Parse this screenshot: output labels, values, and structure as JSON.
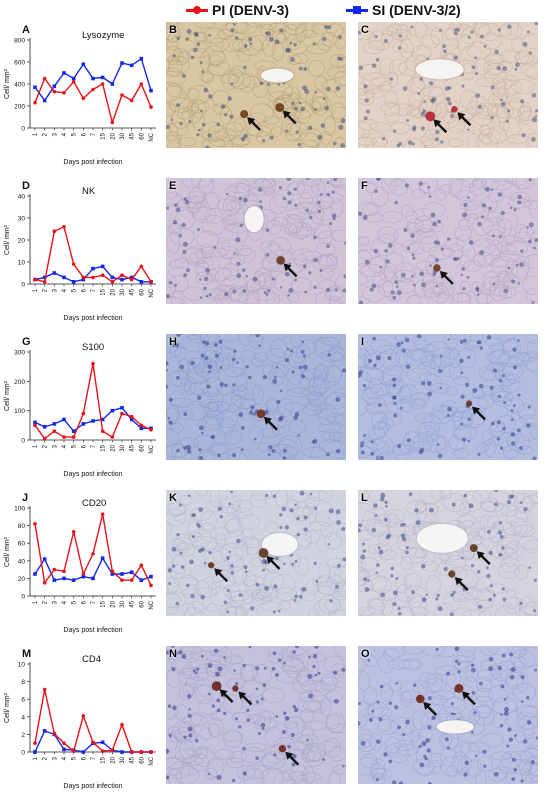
{
  "legend": [
    {
      "label": "PI (DENV-3)",
      "color": "#e8121b",
      "marker": "circle"
    },
    {
      "label": "SI (DENV-3/2)",
      "color": "#1428e6",
      "marker": "square"
    }
  ],
  "x_categories": [
    "1",
    "2",
    "3",
    "4",
    "5",
    "6",
    "7",
    "15",
    "20",
    "30",
    "45",
    "60",
    "NC"
  ],
  "xlabel": "Days post infection",
  "chart_data": [
    {
      "panel": "A",
      "title": "Lysozyme",
      "type": "line",
      "ylabel": "Cell/ mm²",
      "ylim": [
        0,
        800
      ],
      "yticks": [
        0,
        200,
        400,
        600,
        800
      ],
      "categories": [
        "1",
        "2",
        "3",
        "4",
        "5",
        "6",
        "7",
        "15",
        "20",
        "30",
        "45",
        "60",
        "NC"
      ],
      "series": [
        {
          "name": "PI (DENV-3)",
          "values": [
            230,
            450,
            330,
            320,
            420,
            270,
            350,
            400,
            50,
            300,
            250,
            400,
            190
          ]
        },
        {
          "name": "SI (DENV-3/2)",
          "values": [
            370,
            250,
            380,
            500,
            450,
            580,
            450,
            460,
            400,
            590,
            570,
            630,
            340
          ]
        }
      ]
    },
    {
      "panel": "D",
      "title": "NK",
      "type": "line",
      "ylabel": "Cell/ mm²",
      "ylim": [
        0,
        40
      ],
      "yticks": [
        0,
        10,
        20,
        30,
        40
      ],
      "categories": [
        "1",
        "2",
        "3",
        "4",
        "5",
        "6",
        "7",
        "15",
        "20",
        "30",
        "45",
        "60",
        "NC"
      ],
      "series": [
        {
          "name": "PI (DENV-3)",
          "values": [
            2,
            1,
            24,
            26,
            9,
            3,
            3,
            4,
            1,
            4,
            2,
            8,
            1
          ]
        },
        {
          "name": "SI (DENV-3/2)",
          "values": [
            2,
            3,
            5,
            3,
            1,
            2,
            7,
            8,
            3,
            2,
            3,
            1,
            1
          ]
        }
      ]
    },
    {
      "panel": "G",
      "title": "S100",
      "type": "line",
      "ylabel": "Cell/ mm²",
      "ylim": [
        0,
        300
      ],
      "yticks": [
        0,
        100,
        200,
        300
      ],
      "categories": [
        "1",
        "2",
        "3",
        "4",
        "5",
        "6",
        "7",
        "15",
        "20",
        "30",
        "45",
        "60",
        "NC"
      ],
      "series": [
        {
          "name": "PI (DENV-3)",
          "values": [
            50,
            5,
            30,
            10,
            10,
            90,
            260,
            30,
            10,
            90,
            80,
            50,
            35
          ]
        },
        {
          "name": "SI (DENV-3/2)",
          "values": [
            60,
            45,
            55,
            70,
            30,
            55,
            65,
            70,
            100,
            110,
            70,
            40,
            40
          ]
        }
      ]
    },
    {
      "panel": "J",
      "title": "CD20",
      "type": "line",
      "ylabel": "Cell/ mm²",
      "ylim": [
        0,
        100
      ],
      "yticks": [
        0,
        20,
        40,
        60,
        80,
        100
      ],
      "categories": [
        "1",
        "2",
        "3",
        "4",
        "5",
        "6",
        "7",
        "15",
        "20",
        "30",
        "45",
        "60",
        "NC"
      ],
      "series": [
        {
          "name": "PI (DENV-3)",
          "values": [
            82,
            15,
            30,
            28,
            73,
            25,
            48,
            93,
            28,
            18,
            18,
            35,
            12
          ]
        },
        {
          "name": "SI (DENV-3/2)",
          "values": [
            25,
            42,
            18,
            20,
            18,
            22,
            20,
            43,
            25,
            25,
            27,
            18,
            22
          ]
        }
      ]
    },
    {
      "panel": "M",
      "title": "CD4",
      "type": "line",
      "ylabel": "Cell/ mm²",
      "ylim": [
        0,
        10
      ],
      "yticks": [
        0,
        2,
        4,
        6,
        8,
        10
      ],
      "categories": [
        "1",
        "2",
        "3",
        "4",
        "5",
        "6",
        "7",
        "15",
        "20",
        "30",
        "45",
        "60",
        "NC"
      ],
      "series": [
        {
          "name": "PI (DENV-3)",
          "values": [
            1,
            7.1,
            2.1,
            1,
            0.1,
            4.1,
            1.1,
            0.1,
            0.2,
            3.1,
            0,
            0,
            0
          ]
        },
        {
          "name": "SI (DENV-3/2)",
          "values": [
            0,
            2.4,
            2,
            0.3,
            0.2,
            0,
            1,
            1.1,
            0.2,
            0,
            0,
            0,
            0
          ]
        }
      ]
    }
  ],
  "micrographs": [
    {
      "letter": "B",
      "bg": "#d9c7a3",
      "cell": "#b9a47f",
      "nuc": "#3f4f7a",
      "stain": "#6b3a18"
    },
    {
      "letter": "C",
      "bg": "#e3d2c7",
      "cell": "#cdb3a7",
      "nuc": "#4b5a82",
      "stain": "#b5222e"
    },
    {
      "letter": "E",
      "bg": "#cfc3d8",
      "cell": "#b3a6c4",
      "nuc": "#4a4a86",
      "stain": "#6b3520"
    },
    {
      "letter": "F",
      "bg": "#d2c6da",
      "cell": "#b6aac6",
      "nuc": "#4a4a86",
      "stain": "#6b3520"
    },
    {
      "letter": "H",
      "bg": "#a9b6da",
      "cell": "#8f9fcf",
      "nuc": "#34408a",
      "stain": "#6b2f16"
    },
    {
      "letter": "I",
      "bg": "#b3bde0",
      "cell": "#98a4d2",
      "nuc": "#34408a",
      "stain": "#6b2f16"
    },
    {
      "letter": "K",
      "bg": "#d2d3e0",
      "cell": "#b7b9cf",
      "nuc": "#3c4d8a",
      "stain": "#5e3418"
    },
    {
      "letter": "L",
      "bg": "#d6d3df",
      "cell": "#bcb8cc",
      "nuc": "#3c4d8a",
      "stain": "#5e3418"
    },
    {
      "letter": "N",
      "bg": "#c4c1dc",
      "cell": "#a9a5ca",
      "nuc": "#34378a",
      "stain": "#6a2418"
    },
    {
      "letter": "O",
      "bg": "#bdc0e0",
      "cell": "#a3a7d0",
      "nuc": "#34378a",
      "stain": "#6a2418"
    }
  ]
}
